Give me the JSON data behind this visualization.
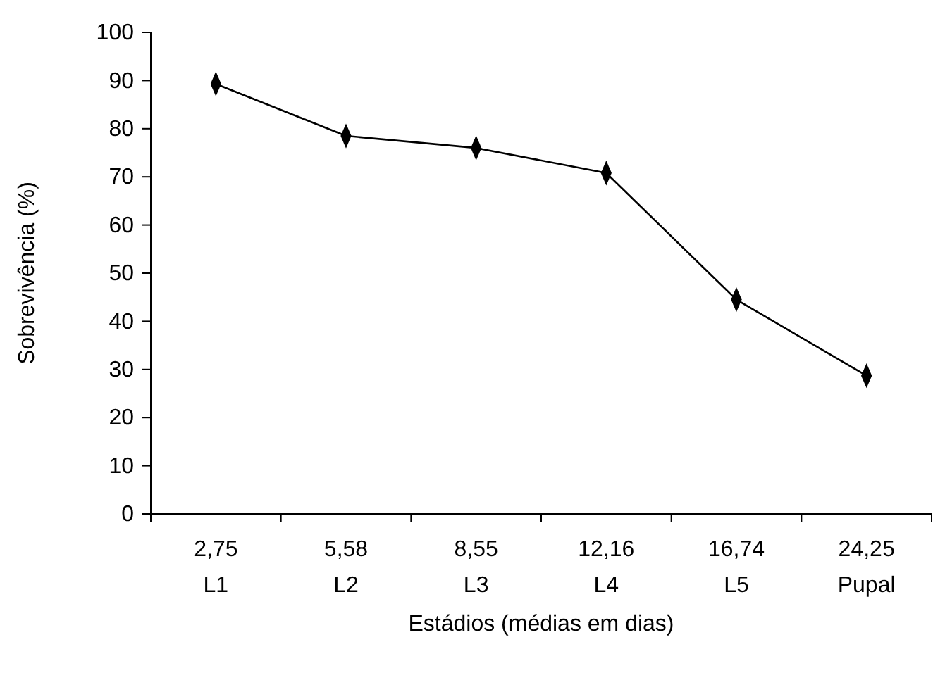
{
  "chart_data": {
    "type": "line",
    "categories": [
      "2,75\nL1",
      "5,58\nL2",
      "8,55\nL3",
      "12,16\nL4",
      "16,74\nL5",
      "24,25\nPupal"
    ],
    "series": [
      {
        "color": "#000000",
        "values": [
          89.3,
          78.5,
          76,
          70.8,
          44.5,
          28.7
        ]
      }
    ],
    "ylim": [
      0,
      100
    ],
    "yticks": [
      0,
      10,
      20,
      30,
      40,
      50,
      60,
      70,
      80,
      90,
      100
    ],
    "xlabel": "Estádios (médias em dias)",
    "ylabel": "Sobrevivência  (%)",
    "marker": "diamond",
    "line_style": "solid",
    "grid": false
  }
}
